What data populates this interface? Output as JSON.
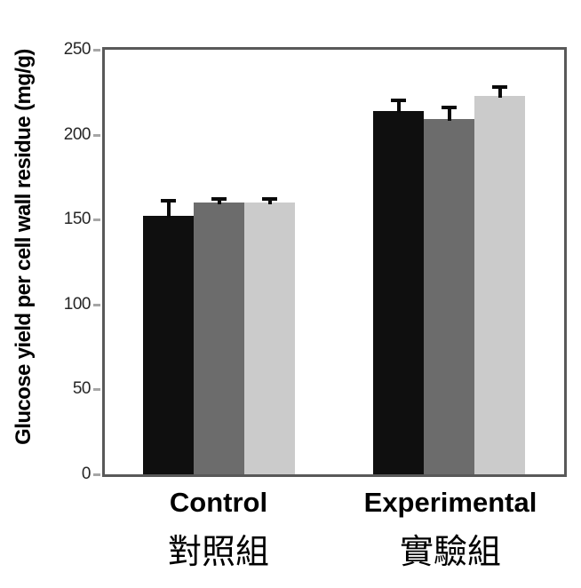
{
  "chart_data": {
    "type": "bar",
    "title": "",
    "xlabel": "",
    "ylabel": "Glucose yield per cell wall residue (mg/g)",
    "ylim": [
      0,
      250
    ],
    "yticks": [
      0,
      50,
      100,
      150,
      200,
      250
    ],
    "grid": false,
    "legend": "none",
    "categories": [
      {
        "label_en": "Control",
        "label_zh": "對照組"
      },
      {
        "label_en": "Experimental",
        "label_zh": "實驗組"
      }
    ],
    "series": [
      {
        "name": "black-bar",
        "color": "#0f0f0f",
        "values": [
          152,
          214
        ],
        "errors_upper": [
          10,
          7
        ]
      },
      {
        "name": "dark-gray-bar",
        "color": "#6c6c6c",
        "values": [
          160,
          209
        ],
        "errors_upper": [
          3,
          8
        ]
      },
      {
        "name": "light-gray-bar",
        "color": "#cbcbcb",
        "values": [
          160,
          223
        ],
        "errors_upper": [
          3,
          6
        ]
      }
    ],
    "colors": {
      "axis_border": "#595959",
      "tick_mark": "#a6a6a6",
      "tick_label_text": "#262626",
      "error_bar": "#0a0a0a",
      "label_text": "#000000"
    }
  }
}
